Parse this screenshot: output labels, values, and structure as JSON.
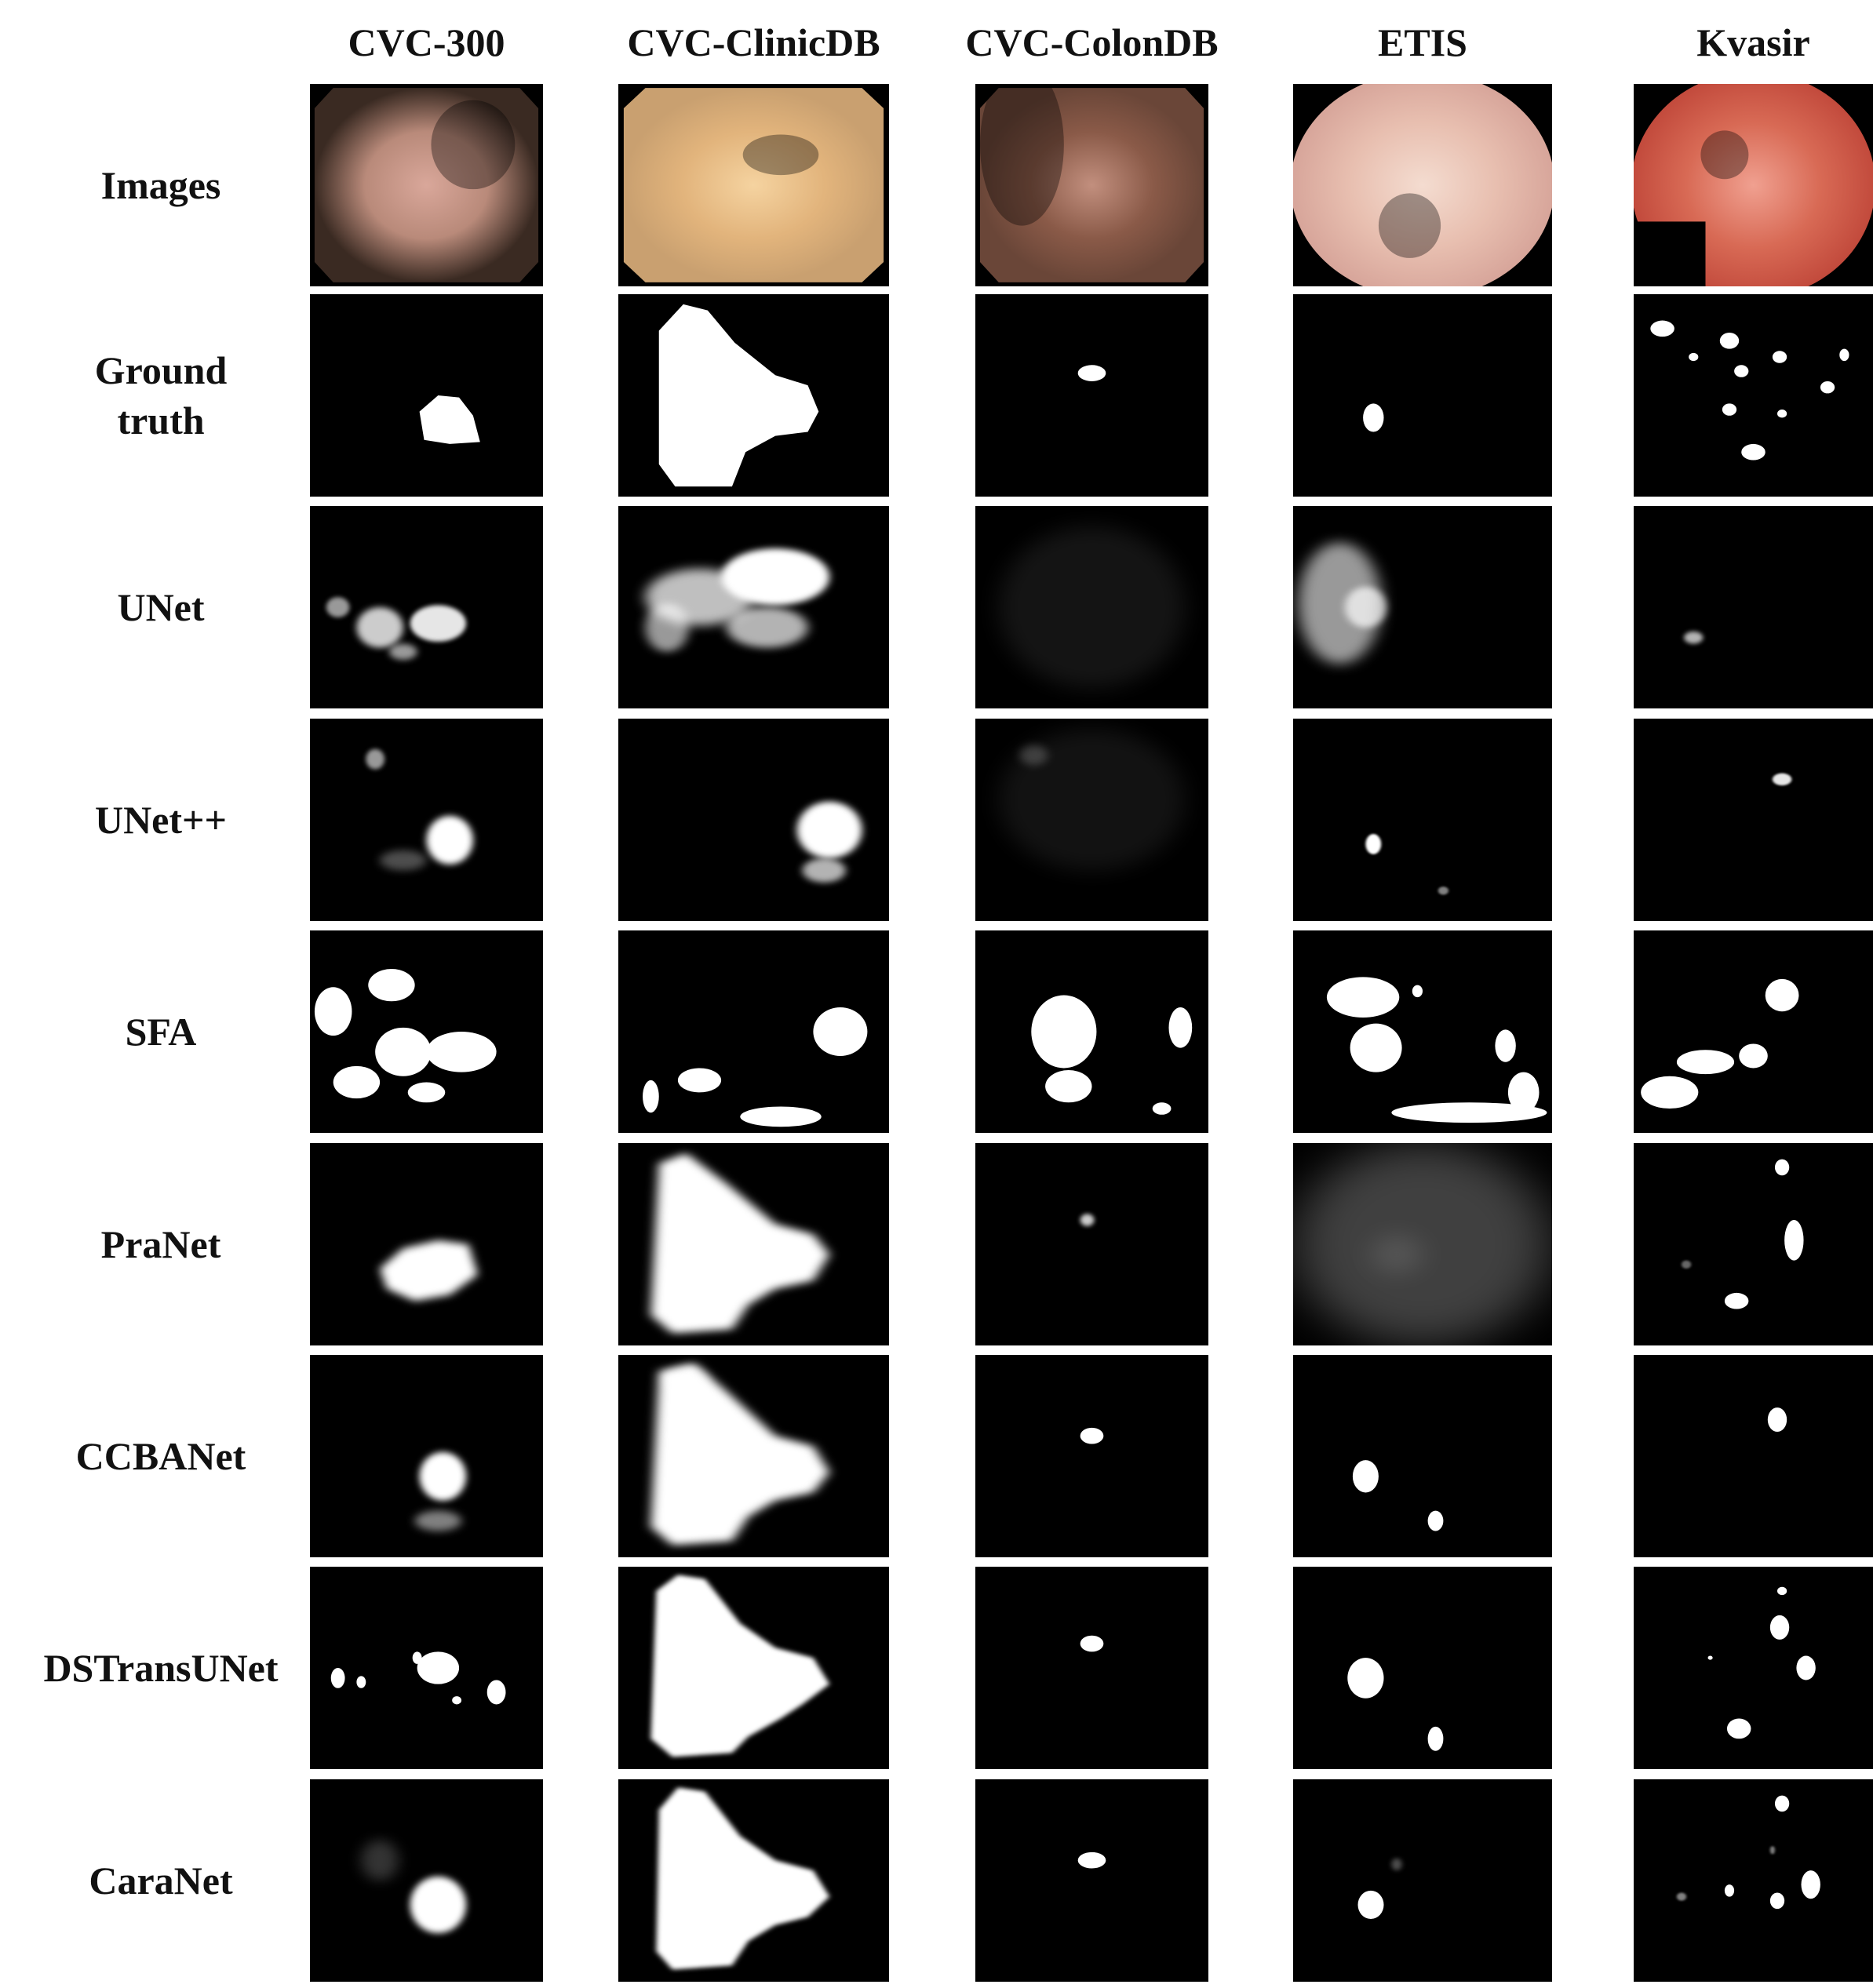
{
  "figure": {
    "columns": [
      "CVC-300",
      "CVC-ClinicDB",
      "CVC-ColonDB",
      "ETIS",
      "Kvasir"
    ],
    "rows": [
      "Images",
      "Ground\ntruth",
      "UNet",
      "UNet++",
      "SFA",
      "PraNet",
      "CCBANet",
      "DSTransUNet",
      "CaraNet"
    ]
  }
}
